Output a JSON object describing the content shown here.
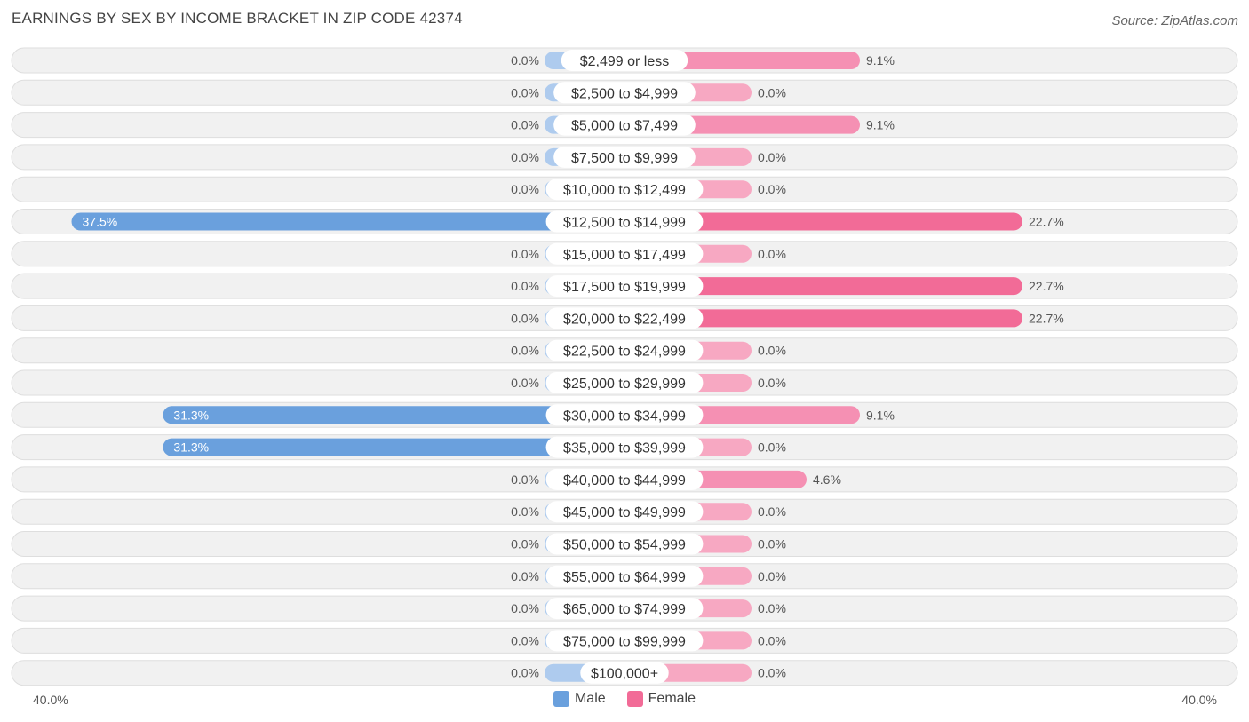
{
  "title": "EARNINGS BY SEX BY INCOME BRACKET IN ZIP CODE 42374",
  "source": "Source: ZipAtlas.com",
  "colors": {
    "male_strong": "#6aa0dd",
    "male_light": "#aecbee",
    "female_strong": "#f26b97",
    "female_light": "#f7a8c2",
    "row_bg": "#f1f1f1",
    "row_border": "#dedede"
  },
  "legend": {
    "male": "Male",
    "female": "Female"
  },
  "axis": {
    "left_label": "40.0%",
    "right_label": "40.0%"
  },
  "chart_data": {
    "type": "bar",
    "orientation": "horizontal-diverging",
    "title": "EARNINGS BY SEX BY INCOME BRACKET IN ZIP CODE 42374",
    "xlim": [
      -40,
      40
    ],
    "categories": [
      "$2,499 or less",
      "$2,500 to $4,999",
      "$5,000 to $7,499",
      "$7,500 to $9,999",
      "$10,000 to $12,499",
      "$12,500 to $14,999",
      "$15,000 to $17,499",
      "$17,500 to $19,999",
      "$20,000 to $22,499",
      "$22,500 to $24,999",
      "$25,000 to $29,999",
      "$30,000 to $34,999",
      "$35,000 to $39,999",
      "$40,000 to $44,999",
      "$45,000 to $49,999",
      "$50,000 to $54,999",
      "$55,000 to $64,999",
      "$65,000 to $74,999",
      "$75,000 to $99,999",
      "$100,000+"
    ],
    "series": [
      {
        "name": "Male",
        "values": [
          0.0,
          0.0,
          0.0,
          0.0,
          0.0,
          37.5,
          0.0,
          0.0,
          0.0,
          0.0,
          0.0,
          31.3,
          31.3,
          0.0,
          0.0,
          0.0,
          0.0,
          0.0,
          0.0,
          0.0
        ],
        "labels": [
          "0.0%",
          "0.0%",
          "0.0%",
          "0.0%",
          "0.0%",
          "37.5%",
          "0.0%",
          "0.0%",
          "0.0%",
          "0.0%",
          "0.0%",
          "31.3%",
          "31.3%",
          "0.0%",
          "0.0%",
          "0.0%",
          "0.0%",
          "0.0%",
          "0.0%",
          "0.0%"
        ]
      },
      {
        "name": "Female",
        "values": [
          9.1,
          0.0,
          9.1,
          0.0,
          0.0,
          22.7,
          0.0,
          22.7,
          22.7,
          0.0,
          0.0,
          9.1,
          0.0,
          4.6,
          0.0,
          0.0,
          0.0,
          0.0,
          0.0,
          0.0
        ],
        "labels": [
          "9.1%",
          "0.0%",
          "9.1%",
          "0.0%",
          "0.0%",
          "22.7%",
          "0.0%",
          "22.7%",
          "22.7%",
          "0.0%",
          "0.0%",
          "9.1%",
          "0.0%",
          "4.6%",
          "0.0%",
          "0.0%",
          "0.0%",
          "0.0%",
          "0.0%",
          "0.0%"
        ]
      }
    ]
  }
}
